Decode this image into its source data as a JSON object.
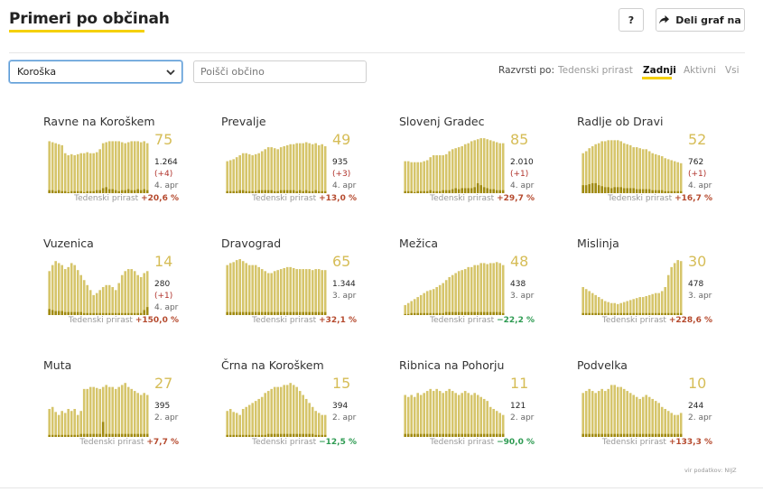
{
  "header": {
    "title": "Primeri po občinah",
    "help_label": "?",
    "share_label": "Deli graf na"
  },
  "filters": {
    "region_selected": "Koroška",
    "search_placeholder": "Poišči občino"
  },
  "sort": {
    "label": "Razvrsti po:",
    "options": [
      "Tedenski prirast",
      "Zadnji",
      "Aktivni",
      "Vsi"
    ],
    "active_index": 1
  },
  "colors": {
    "bar": "#d6c56b",
    "bar_dark": "#a08a10",
    "accent_yellow": "#f5d000",
    "value": "#d6bd57",
    "positive_growth": "#b54a2e",
    "negative_growth": "#2e9b52"
  },
  "growth_label": "Tedenski prirast",
  "source_text": "vir podatkov: NIJZ",
  "chart_data": [
    {
      "type": "bar",
      "name": "Ravne na Koroškem",
      "value": "75",
      "total": "1.264",
      "change": "(+4)",
      "date": "4. apr",
      "growth": "+20,6 %",
      "growth_sign": "pos",
      "values": [
        52,
        51,
        50,
        49,
        48,
        40,
        38,
        39,
        38,
        39,
        40,
        40,
        41,
        40,
        40,
        41,
        44,
        50,
        51,
        52,
        52,
        52,
        52,
        51,
        50,
        51,
        52,
        52,
        52,
        51,
        52,
        50
      ],
      "new": [
        3,
        3,
        2,
        3,
        2,
        2,
        1,
        2,
        2,
        2,
        2,
        1,
        2,
        2,
        2,
        3,
        3,
        5,
        6,
        4,
        4,
        3,
        2,
        3,
        3,
        4,
        3,
        3,
        4,
        3,
        4,
        3
      ]
    },
    {
      "type": "bar",
      "name": "Prevalje",
      "value": "49",
      "total": "935",
      "change": "(+3)",
      "date": "4. apr",
      "growth": "+13,0 %",
      "growth_sign": "pos",
      "values": [
        32,
        33,
        34,
        36,
        38,
        40,
        40,
        39,
        38,
        39,
        40,
        42,
        44,
        46,
        46,
        45,
        44,
        46,
        47,
        48,
        49,
        49,
        50,
        50,
        50,
        51,
        50,
        49,
        50,
        48,
        49,
        47
      ],
      "new": [
        2,
        2,
        2,
        2,
        3,
        3,
        2,
        2,
        2,
        2,
        3,
        3,
        3,
        3,
        3,
        2,
        2,
        3,
        3,
        3,
        3,
        3,
        2,
        3,
        2,
        3,
        2,
        2,
        3,
        2,
        2,
        2
      ]
    },
    {
      "type": "bar",
      "name": "Slovenj Gradec",
      "value": "85",
      "total": "2.010",
      "change": "(+1)",
      "date": "4. apr",
      "growth": "+29,7 %",
      "growth_sign": "pos",
      "values": [
        32,
        32,
        31,
        31,
        31,
        31,
        32,
        33,
        36,
        38,
        38,
        38,
        38,
        39,
        42,
        44,
        45,
        46,
        47,
        49,
        50,
        52,
        53,
        54,
        55,
        55,
        54,
        53,
        52,
        51,
        50,
        50
      ],
      "new": [
        2,
        2,
        2,
        1,
        2,
        2,
        2,
        2,
        3,
        2,
        2,
        2,
        3,
        3,
        3,
        4,
        5,
        4,
        5,
        5,
        5,
        5,
        6,
        10,
        8,
        6,
        5,
        4,
        4,
        3,
        3,
        3
      ]
    },
    {
      "type": "bar",
      "name": "Radlje ob Dravi",
      "value": "52",
      "total": "762",
      "change": "(+1)",
      "date": "4. apr",
      "growth": "+16,7 %",
      "growth_sign": "pos",
      "values": [
        40,
        42,
        45,
        47,
        49,
        50,
        52,
        52,
        53,
        53,
        53,
        53,
        52,
        50,
        49,
        48,
        46,
        46,
        45,
        44,
        44,
        42,
        40,
        39,
        38,
        37,
        35,
        34,
        33,
        32,
        31,
        30
      ],
      "new": [
        8,
        8,
        9,
        10,
        10,
        8,
        7,
        6,
        6,
        5,
        6,
        6,
        6,
        5,
        5,
        5,
        5,
        4,
        4,
        4,
        4,
        4,
        3,
        3,
        3,
        3,
        2,
        2,
        2,
        2,
        2,
        2
      ]
    },
    {
      "type": "bar",
      "name": "Vuzenica",
      "value": "14",
      "total": "280",
      "change": "(+1)",
      "date": "4. apr",
      "growth": "+150,0 %",
      "growth_sign": "pos",
      "values": [
        44,
        50,
        54,
        52,
        50,
        46,
        48,
        52,
        50,
        45,
        40,
        35,
        30,
        25,
        20,
        22,
        25,
        28,
        30,
        30,
        28,
        25,
        32,
        40,
        44,
        46,
        46,
        44,
        40,
        38,
        42,
        44
      ],
      "new": [
        6,
        5,
        4,
        4,
        4,
        3,
        3,
        3,
        3,
        3,
        3,
        2,
        2,
        2,
        2,
        2,
        2,
        2,
        2,
        2,
        2,
        2,
        2,
        2,
        2,
        2,
        2,
        2,
        2,
        2,
        5,
        8
      ]
    },
    {
      "type": "bar",
      "name": "Dravograd",
      "value": "65",
      "total": "1.344",
      "change": "",
      "date": "3. apr",
      "growth": "+32,1 %",
      "growth_sign": "pos",
      "values": [
        50,
        52,
        53,
        55,
        56,
        54,
        52,
        50,
        50,
        50,
        48,
        46,
        44,
        42,
        42,
        44,
        45,
        46,
        47,
        48,
        48,
        47,
        46,
        46,
        46,
        46,
        46,
        45,
        46,
        46,
        45,
        45
      ],
      "new": [
        3,
        3,
        3,
        3,
        3,
        3,
        3,
        3,
        3,
        3,
        3,
        3,
        3,
        3,
        3,
        3,
        3,
        3,
        3,
        3,
        3,
        3,
        3,
        3,
        3,
        3,
        3,
        3,
        3,
        3,
        3,
        3
      ]
    },
    {
      "type": "bar",
      "name": "Mežica",
      "value": "48",
      "total": "438",
      "change": "",
      "date": "3. apr",
      "growth": "−22,2 %",
      "growth_sign": "neg",
      "values": [
        10,
        12,
        14,
        16,
        18,
        20,
        22,
        24,
        25,
        26,
        28,
        30,
        32,
        35,
        38,
        40,
        42,
        44,
        45,
        46,
        48,
        48,
        50,
        50,
        52,
        52,
        51,
        52,
        52,
        53,
        52,
        50
      ],
      "new": [
        1,
        1,
        2,
        2,
        2,
        2,
        2,
        2,
        2,
        2,
        2,
        2,
        2,
        3,
        3,
        3,
        3,
        3,
        3,
        3,
        3,
        3,
        3,
        3,
        3,
        3,
        3,
        3,
        3,
        3,
        3,
        2
      ]
    },
    {
      "type": "bar",
      "name": "Mislinja",
      "value": "30",
      "total": "478",
      "change": "",
      "date": "3. apr",
      "growth": "+228,6 %",
      "growth_sign": "pos",
      "values": [
        28,
        26,
        24,
        22,
        20,
        18,
        16,
        14,
        13,
        12,
        12,
        11,
        12,
        13,
        14,
        15,
        16,
        17,
        18,
        18,
        19,
        20,
        21,
        22,
        22,
        24,
        28,
        40,
        48,
        52,
        55,
        54
      ],
      "new": [
        2,
        2,
        2,
        2,
        2,
        2,
        2,
        2,
        2,
        2,
        2,
        2,
        2,
        2,
        2,
        2,
        2,
        2,
        2,
        2,
        2,
        2,
        2,
        2,
        2,
        2,
        2,
        2,
        2,
        2,
        2,
        2
      ]
    },
    {
      "type": "bar",
      "name": "Muta",
      "value": "27",
      "total": "395",
      "change": "",
      "date": "2. apr",
      "growth": "+7,7 %",
      "growth_sign": "pos",
      "values": [
        28,
        30,
        25,
        22,
        26,
        24,
        28,
        26,
        28,
        22,
        26,
        48,
        48,
        50,
        50,
        49,
        48,
        50,
        52,
        50,
        50,
        48,
        50,
        52,
        54,
        50,
        48,
        46,
        44,
        42,
        44,
        42
      ],
      "new": [
        2,
        2,
        2,
        2,
        2,
        2,
        2,
        2,
        2,
        2,
        3,
        3,
        3,
        3,
        3,
        3,
        3,
        15,
        3,
        3,
        3,
        3,
        3,
        3,
        3,
        3,
        3,
        3,
        3,
        3,
        3,
        3
      ]
    },
    {
      "type": "bar",
      "name": "Črna na Koroškem",
      "value": "15",
      "total": "394",
      "change": "",
      "date": "2. apr",
      "growth": "−12,5 %",
      "growth_sign": "neg",
      "values": [
        26,
        28,
        25,
        24,
        22,
        28,
        30,
        32,
        34,
        36,
        38,
        40,
        44,
        46,
        48,
        50,
        50,
        50,
        52,
        52,
        54,
        52,
        50,
        46,
        42,
        38,
        34,
        30,
        26,
        24,
        22,
        22
      ],
      "new": [
        2,
        2,
        2,
        2,
        2,
        2,
        2,
        2,
        2,
        2,
        2,
        2,
        2,
        3,
        3,
        3,
        3,
        3,
        3,
        3,
        3,
        3,
        3,
        3,
        3,
        3,
        3,
        3,
        2,
        2,
        2,
        2
      ]
    },
    {
      "type": "bar",
      "name": "Ribnica na Pohorju",
      "value": "11",
      "total": "121",
      "change": "",
      "date": "2. apr",
      "growth": "−90,0 %",
      "growth_sign": "neg",
      "values": [
        42,
        40,
        42,
        40,
        44,
        42,
        44,
        46,
        48,
        46,
        48,
        46,
        44,
        46,
        48,
        46,
        44,
        42,
        44,
        46,
        44,
        42,
        44,
        42,
        40,
        38,
        36,
        30,
        28,
        26,
        24,
        22
      ],
      "new": [
        3,
        3,
        3,
        3,
        3,
        3,
        3,
        3,
        3,
        3,
        3,
        3,
        3,
        3,
        3,
        3,
        3,
        3,
        3,
        3,
        3,
        3,
        3,
        3,
        3,
        3,
        3,
        3,
        3,
        3,
        3,
        3
      ]
    },
    {
      "type": "bar",
      "name": "Podvelka",
      "value": "10",
      "total": "244",
      "change": "",
      "date": "2. apr",
      "growth": "+133,3 %",
      "growth_sign": "pos",
      "values": [
        44,
        46,
        48,
        46,
        44,
        46,
        48,
        46,
        48,
        52,
        52,
        50,
        50,
        48,
        46,
        44,
        42,
        40,
        38,
        40,
        42,
        40,
        38,
        36,
        34,
        30,
        28,
        26,
        24,
        22,
        22,
        24
      ],
      "new": [
        3,
        3,
        3,
        3,
        3,
        3,
        3,
        3,
        3,
        3,
        3,
        3,
        3,
        3,
        3,
        3,
        3,
        3,
        3,
        3,
        3,
        3,
        3,
        3,
        3,
        3,
        3,
        3,
        3,
        3,
        3,
        3
      ]
    }
  ]
}
